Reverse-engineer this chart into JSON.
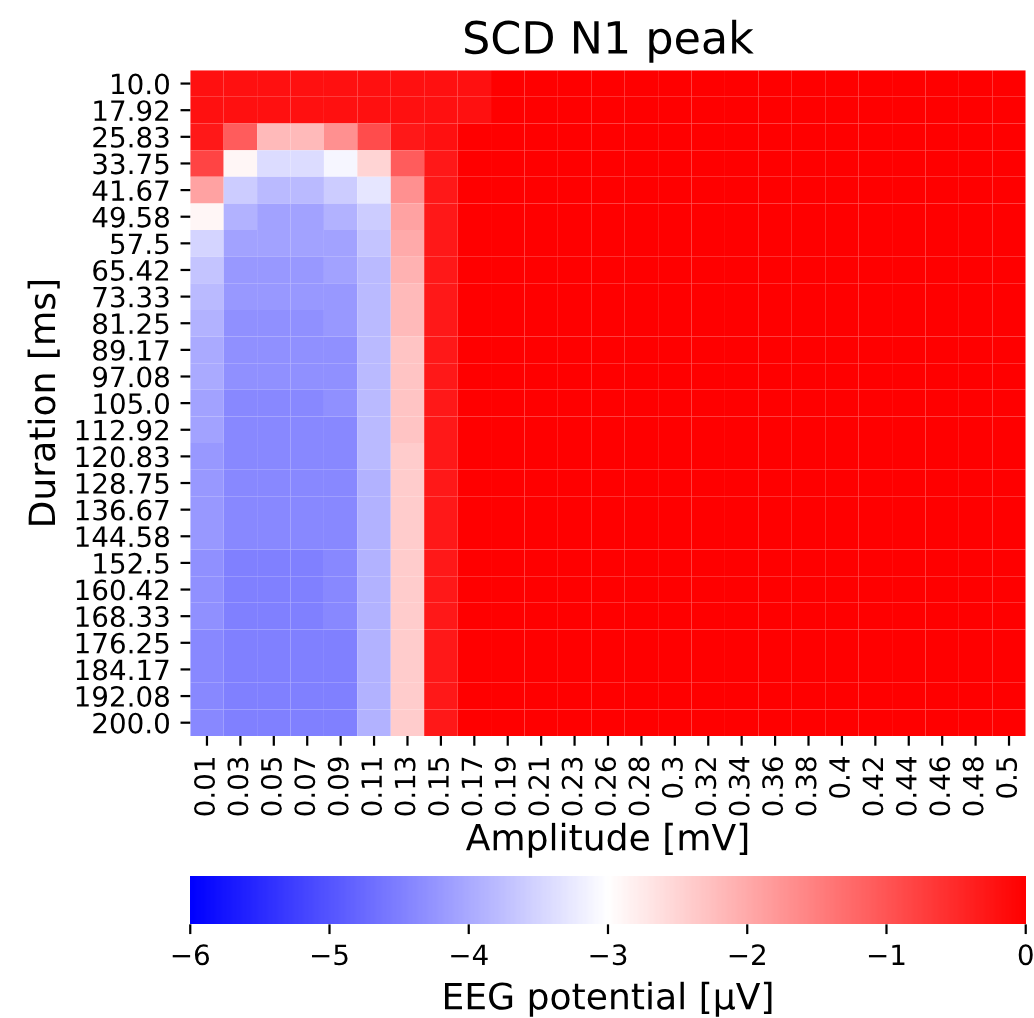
{
  "chart_data": {
    "type": "heatmap",
    "title": "SCD N1 peak",
    "xlabel": "Amplitude [mV]",
    "ylabel": "Duration [ms]",
    "clabel": "EEG potential [μV]",
    "categories": [
      "0.01",
      "0.03",
      "0.05",
      "0.07",
      "0.09",
      "0.11",
      "0.13",
      "0.15",
      "0.17",
      "0.19",
      "0.21",
      "0.23",
      "0.26",
      "0.28",
      "0.3",
      "0.32",
      "0.34",
      "0.36",
      "0.38",
      "0.4",
      "0.42",
      "0.44",
      "0.46",
      "0.48",
      "0.5"
    ],
    "y_categories": [
      "10.0",
      "17.92",
      "25.83",
      "33.75",
      "41.67",
      "49.58",
      "57.5",
      "65.42",
      "73.33",
      "81.25",
      "89.17",
      "97.08",
      "105.0",
      "112.92",
      "120.83",
      "128.75",
      "136.67",
      "144.58",
      "152.5",
      "160.42",
      "168.33",
      "176.25",
      "184.17",
      "192.08",
      "200.0"
    ],
    "clim": [
      -6,
      0
    ],
    "cticks": [
      -6,
      -5,
      -4,
      -3,
      -2,
      -1,
      0
    ],
    "cells": [
      [
        -0.2,
        -0.2,
        -0.2,
        -0.2,
        -0.2,
        -0.2,
        -0.2,
        -0.2,
        -0.2,
        0,
        0,
        0,
        0,
        0,
        0,
        0,
        0,
        0,
        0,
        0,
        0,
        0,
        0,
        0,
        0
      ],
      [
        -0.2,
        -0.2,
        -0.2,
        -0.2,
        -0.2,
        -0.2,
        -0.2,
        -0.2,
        -0.2,
        0,
        0,
        0,
        0,
        0,
        0,
        0,
        0,
        0,
        0,
        0,
        0,
        0,
        0,
        0,
        0
      ],
      [
        -0.3,
        -1.1,
        -2.2,
        -2.2,
        -1.7,
        -0.9,
        -0.3,
        -0.2,
        0,
        0,
        0,
        0,
        0,
        0,
        0,
        0,
        0,
        0,
        0,
        0,
        0,
        0,
        0,
        0,
        0
      ],
      [
        -0.8,
        -2.9,
        -3.4,
        -3.4,
        -3.1,
        -2.5,
        -1.1,
        -0.3,
        0,
        0,
        0,
        0,
        0,
        0,
        0,
        0,
        0,
        0,
        0,
        0,
        0,
        0,
        0,
        0,
        0
      ],
      [
        -1.9,
        -3.6,
        -3.8,
        -3.8,
        -3.6,
        -3.3,
        -1.7,
        -0.3,
        0,
        0,
        0,
        0,
        0,
        0,
        0,
        0,
        0,
        0,
        0,
        0,
        0,
        0,
        0,
        0,
        0
      ],
      [
        -2.9,
        -3.9,
        -4.1,
        -4.1,
        -3.9,
        -3.6,
        -1.9,
        -0.3,
        0,
        0,
        0,
        0,
        0,
        0,
        0,
        0,
        0,
        0,
        0,
        0,
        0,
        0,
        0,
        0,
        0
      ],
      [
        -3.5,
        -4.1,
        -4.1,
        -4.1,
        -4.1,
        -3.7,
        -2.0,
        -0.3,
        0,
        0,
        0,
        0,
        0,
        0,
        0,
        0,
        0,
        0,
        0,
        0,
        0,
        0,
        0,
        0,
        0
      ],
      [
        -3.7,
        -4.2,
        -4.2,
        -4.2,
        -4.1,
        -3.8,
        -2.1,
        -0.3,
        0,
        0,
        0,
        0,
        0,
        0,
        0,
        0,
        0,
        0,
        0,
        0,
        0,
        0,
        0,
        0,
        0
      ],
      [
        -3.8,
        -4.2,
        -4.2,
        -4.2,
        -4.2,
        -3.8,
        -2.2,
        -0.3,
        0,
        0,
        0,
        0,
        0,
        0,
        0,
        0,
        0,
        0,
        0,
        0,
        0,
        0,
        0,
        0,
        0
      ],
      [
        -3.9,
        -4.3,
        -4.3,
        -4.3,
        -4.2,
        -3.8,
        -2.2,
        -0.3,
        0,
        0,
        0,
        0,
        0,
        0,
        0,
        0,
        0,
        0,
        0,
        0,
        0,
        0,
        0,
        0,
        0
      ],
      [
        -4.0,
        -4.3,
        -4.3,
        -4.3,
        -4.3,
        -3.8,
        -2.3,
        -0.3,
        0,
        0,
        0,
        0,
        0,
        0,
        0,
        0,
        0,
        0,
        0,
        0,
        0,
        0,
        0,
        0,
        0
      ],
      [
        -4.0,
        -4.3,
        -4.3,
        -4.3,
        -4.3,
        -3.8,
        -2.3,
        -0.3,
        0,
        0,
        0,
        0,
        0,
        0,
        0,
        0,
        0,
        0,
        0,
        0,
        0,
        0,
        0,
        0,
        0
      ],
      [
        -4.1,
        -4.4,
        -4.4,
        -4.4,
        -4.3,
        -3.8,
        -2.3,
        -0.3,
        0,
        0,
        0,
        0,
        0,
        0,
        0,
        0,
        0,
        0,
        0,
        0,
        0,
        0,
        0,
        0,
        0
      ],
      [
        -4.1,
        -4.4,
        -4.4,
        -4.4,
        -4.4,
        -3.8,
        -2.3,
        -0.3,
        0,
        0,
        0,
        0,
        0,
        0,
        0,
        0,
        0,
        0,
        0,
        0,
        0,
        0,
        0,
        0,
        0
      ],
      [
        -4.2,
        -4.4,
        -4.4,
        -4.4,
        -4.4,
        -3.8,
        -2.4,
        -0.3,
        0,
        0,
        0,
        0,
        0,
        0,
        0,
        0,
        0,
        0,
        0,
        0,
        0,
        0,
        0,
        0,
        0
      ],
      [
        -4.2,
        -4.4,
        -4.4,
        -4.4,
        -4.4,
        -3.9,
        -2.4,
        -0.3,
        0,
        0,
        0,
        0,
        0,
        0,
        0,
        0,
        0,
        0,
        0,
        0,
        0,
        0,
        0,
        0,
        0
      ],
      [
        -4.2,
        -4.4,
        -4.4,
        -4.4,
        -4.4,
        -3.9,
        -2.4,
        -0.3,
        0,
        0,
        0,
        0,
        0,
        0,
        0,
        0,
        0,
        0,
        0,
        0,
        0,
        0,
        0,
        0,
        0
      ],
      [
        -4.2,
        -4.4,
        -4.4,
        -4.4,
        -4.4,
        -3.9,
        -2.4,
        -0.3,
        0,
        0,
        0,
        0,
        0,
        0,
        0,
        0,
        0,
        0,
        0,
        0,
        0,
        0,
        0,
        0,
        0
      ],
      [
        -4.3,
        -4.5,
        -4.5,
        -4.5,
        -4.4,
        -3.9,
        -2.4,
        -0.3,
        0,
        0,
        0,
        0,
        0,
        0,
        0,
        0,
        0,
        0,
        0,
        0,
        0,
        0,
        0,
        0,
        0
      ],
      [
        -4.3,
        -4.5,
        -4.5,
        -4.5,
        -4.4,
        -3.9,
        -2.4,
        -0.3,
        0,
        0,
        0,
        0,
        0,
        0,
        0,
        0,
        0,
        0,
        0,
        0,
        0,
        0,
        0,
        0,
        0
      ],
      [
        -4.3,
        -4.5,
        -4.5,
        -4.5,
        -4.4,
        -3.9,
        -2.4,
        -0.3,
        0,
        0,
        0,
        0,
        0,
        0,
        0,
        0,
        0,
        0,
        0,
        0,
        0,
        0,
        0,
        0,
        0
      ],
      [
        -4.4,
        -4.5,
        -4.5,
        -4.5,
        -4.5,
        -3.9,
        -2.4,
        -0.3,
        0,
        0,
        0,
        0,
        0,
        0,
        0,
        0,
        0,
        0,
        0,
        0,
        0,
        0,
        0,
        0,
        0
      ],
      [
        -4.4,
        -4.5,
        -4.5,
        -4.5,
        -4.5,
        -3.9,
        -2.4,
        -0.3,
        0,
        0,
        0,
        0,
        0,
        0,
        0,
        0,
        0,
        0,
        0,
        0,
        0,
        0,
        0,
        0,
        0
      ],
      [
        -4.4,
        -4.5,
        -4.5,
        -4.5,
        -4.5,
        -3.9,
        -2.4,
        -0.3,
        0,
        0,
        0,
        0,
        0,
        0,
        0,
        0,
        0,
        0,
        0,
        0,
        0,
        0,
        0,
        0,
        0
      ],
      [
        -4.4,
        -4.5,
        -4.5,
        -4.5,
        -4.5,
        -3.9,
        -2.4,
        -0.3,
        0,
        0,
        0,
        0,
        0,
        0,
        0,
        0,
        0,
        0,
        0,
        0,
        0,
        0,
        0,
        0,
        0
      ]
    ]
  }
}
